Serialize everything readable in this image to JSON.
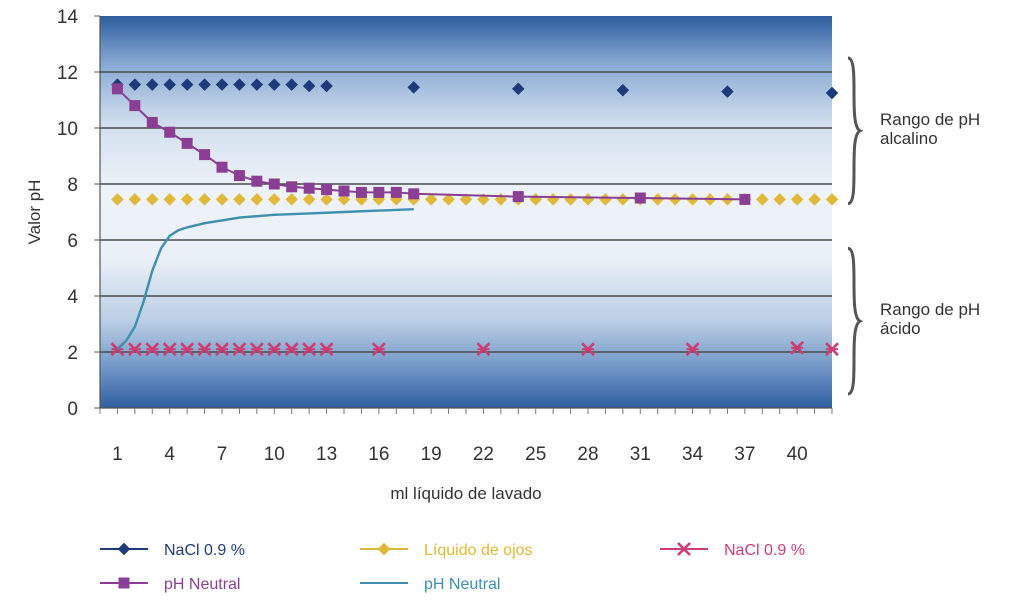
{
  "chart_data": {
    "type": "line",
    "xlabel": "ml líquido de lavado",
    "ylabel": "Valor pH",
    "ylim": [
      0,
      14
    ],
    "yticks": [
      0,
      2,
      4,
      6,
      8,
      10,
      12,
      14
    ],
    "xlim": [
      0,
      42
    ],
    "xticks": [
      1,
      4,
      7,
      10,
      13,
      16,
      19,
      22,
      25,
      28,
      31,
      34,
      37,
      40
    ],
    "grid": true,
    "legend_position": "bottom",
    "annotations": [
      {
        "line1": "Rango de pH",
        "line2": "alcalino",
        "yrange": [
          7.3,
          12.5
        ]
      },
      {
        "line1": "Rango de pH",
        "line2": "ácido",
        "yrange": [
          0.5,
          5.7
        ]
      }
    ],
    "series": [
      {
        "name": "NaCl 0.9 %",
        "marker": "diamond",
        "line": false,
        "color": "#1f3a7a",
        "x": [
          1,
          2,
          3,
          4,
          5,
          6,
          7,
          8,
          9,
          10,
          11,
          12,
          13,
          18,
          24,
          30,
          36,
          42
        ],
        "y": [
          11.55,
          11.55,
          11.55,
          11.55,
          11.55,
          11.55,
          11.55,
          11.55,
          11.55,
          11.55,
          11.55,
          11.5,
          11.5,
          11.45,
          11.4,
          11.35,
          11.3,
          11.25
        ]
      },
      {
        "name": "Líquido de ojos",
        "marker": "diamond",
        "line": false,
        "color": "#e0b83a",
        "x": [
          1,
          2,
          3,
          4,
          5,
          6,
          7,
          8,
          9,
          10,
          11,
          12,
          13,
          14,
          15,
          16,
          17,
          18,
          19,
          20,
          21,
          22,
          23,
          24,
          25,
          26,
          27,
          28,
          29,
          30,
          31,
          32,
          33,
          34,
          35,
          36,
          37,
          38,
          39,
          40,
          41,
          42
        ],
        "y": [
          7.45,
          7.45,
          7.45,
          7.45,
          7.45,
          7.45,
          7.45,
          7.45,
          7.45,
          7.45,
          7.45,
          7.45,
          7.45,
          7.45,
          7.45,
          7.45,
          7.45,
          7.45,
          7.45,
          7.45,
          7.45,
          7.45,
          7.45,
          7.45,
          7.45,
          7.45,
          7.45,
          7.45,
          7.45,
          7.45,
          7.45,
          7.45,
          7.45,
          7.45,
          7.45,
          7.45,
          7.45,
          7.45,
          7.45,
          7.45,
          7.45,
          7.45
        ]
      },
      {
        "name": "NaCl 0.9 %",
        "marker": "x",
        "line": false,
        "color": "#cc3d72",
        "x": [
          1,
          2,
          3,
          4,
          5,
          6,
          7,
          8,
          9,
          10,
          11,
          12,
          13,
          16,
          22,
          28,
          34,
          40,
          42
        ],
        "y": [
          2.1,
          2.1,
          2.1,
          2.1,
          2.1,
          2.1,
          2.1,
          2.1,
          2.1,
          2.1,
          2.1,
          2.1,
          2.1,
          2.1,
          2.1,
          2.1,
          2.1,
          2.15,
          2.1
        ]
      },
      {
        "name": "pH Neutral",
        "marker": "square",
        "line": true,
        "color": "#8a3f95",
        "x": [
          1,
          2,
          3,
          4,
          5,
          6,
          7,
          8,
          9,
          10,
          11,
          12,
          13,
          14,
          15,
          16,
          17,
          18,
          24,
          31,
          37
        ],
        "y": [
          11.4,
          10.8,
          10.2,
          9.85,
          9.45,
          9.05,
          8.6,
          8.3,
          8.1,
          8.0,
          7.9,
          7.85,
          7.8,
          7.75,
          7.7,
          7.7,
          7.7,
          7.65,
          7.55,
          7.5,
          7.45
        ]
      },
      {
        "name": "pH Neutral",
        "marker": "none",
        "line": true,
        "color": "#3f8fb0",
        "x": [
          1,
          1.5,
          2,
          2.5,
          3,
          3.5,
          4,
          4.5,
          5,
          6,
          7,
          8,
          9,
          10,
          12,
          14,
          16,
          18
        ],
        "y": [
          2.1,
          2.4,
          2.9,
          3.8,
          4.9,
          5.7,
          6.15,
          6.35,
          6.45,
          6.6,
          6.7,
          6.8,
          6.85,
          6.9,
          6.95,
          7.0,
          7.05,
          7.1
        ]
      }
    ]
  }
}
